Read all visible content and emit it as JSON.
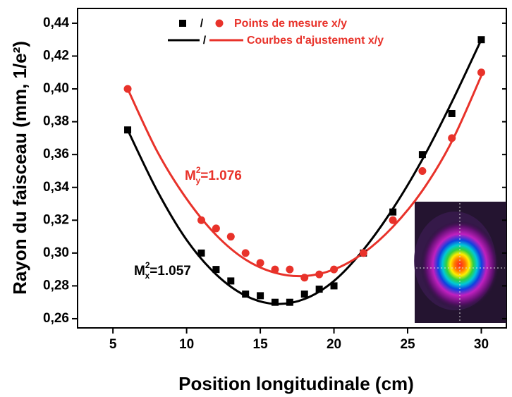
{
  "chart_data": {
    "type": "scatter",
    "xlabel": "Position longitudinale (cm)",
    "ylabel": "Rayon du faisceau (mm, 1/e²)",
    "xlim": [
      2.6,
      31.7
    ],
    "ylim": [
      0.2544,
      0.449
    ],
    "xticks": [
      5,
      10,
      15,
      20,
      25,
      30
    ],
    "yticks": [
      {
        "value": 0.26,
        "label": "0,26"
      },
      {
        "value": 0.28,
        "label": "0,28"
      },
      {
        "value": 0.3,
        "label": "0,30"
      },
      {
        "value": 0.32,
        "label": "0,32"
      },
      {
        "value": 0.34,
        "label": "0,34"
      },
      {
        "value": 0.36,
        "label": "0,36"
      },
      {
        "value": 0.38,
        "label": "0,38"
      },
      {
        "value": 0.4,
        "label": "0,40"
      },
      {
        "value": 0.42,
        "label": "0,42"
      },
      {
        "value": 0.44,
        "label": "0,44"
      }
    ],
    "legend": {
      "entries": [
        "Points de mesure x/y",
        "Courbes d'ajustement x/y"
      ],
      "separator": "/",
      "color": "#e8322a"
    },
    "series": [
      {
        "style": "markers",
        "marker": "square",
        "color": "#000000",
        "x": [
          6,
          11,
          12,
          13,
          14,
          15,
          16,
          17,
          18,
          19,
          20,
          22,
          24,
          26,
          28,
          30
        ],
        "values": [
          0.375,
          0.3,
          0.29,
          0.283,
          0.275,
          0.274,
          0.27,
          0.27,
          0.275,
          0.278,
          0.28,
          0.3,
          0.325,
          0.36,
          0.385,
          0.43
        ]
      },
      {
        "style": "markers",
        "marker": "circle",
        "color": "#e8322a",
        "x": [
          6,
          11,
          12,
          13,
          14,
          15,
          16,
          17,
          18,
          19,
          20,
          22,
          24,
          26,
          28,
          30
        ],
        "values": [
          0.4,
          0.32,
          0.315,
          0.31,
          0.3,
          0.294,
          0.29,
          0.29,
          0.285,
          0.287,
          0.29,
          0.3,
          0.32,
          0.35,
          0.37,
          0.41
        ]
      },
      {
        "style": "line",
        "color": "#000000",
        "x": [
          6,
          8,
          10,
          12,
          14,
          16,
          18,
          20,
          22,
          24,
          26,
          28,
          30
        ],
        "values": [
          0.375,
          0.338,
          0.308,
          0.287,
          0.274,
          0.269,
          0.272,
          0.283,
          0.302,
          0.327,
          0.357,
          0.392,
          0.43
        ]
      },
      {
        "style": "line",
        "color": "#e8322a",
        "x": [
          6,
          8,
          10,
          12,
          14,
          16,
          18,
          20,
          22,
          24,
          26,
          28,
          30
        ],
        "values": [
          0.4,
          0.362,
          0.333,
          0.311,
          0.296,
          0.288,
          0.286,
          0.29,
          0.3,
          0.316,
          0.338,
          0.368,
          0.408
        ]
      }
    ],
    "annotations": [
      {
        "symbol": "M",
        "sup": "2",
        "sub": "y",
        "text": "=1.076",
        "color": "#e8322a"
      },
      {
        "symbol": "M",
        "sup": "2",
        "sub": "x",
        "text": "=1.057",
        "color": "#000000"
      }
    ]
  }
}
